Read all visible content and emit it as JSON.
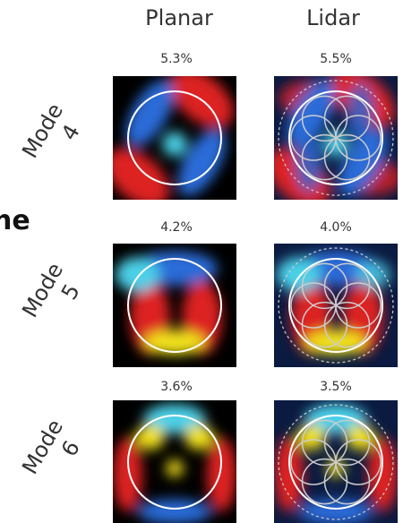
{
  "columns": [
    "Planar",
    "Lidar"
  ],
  "rows": [
    {
      "label": [
        "Mode",
        "4"
      ],
      "values": [
        "5.3%",
        "5.5%"
      ]
    },
    {
      "label": [
        "Mode",
        "5"
      ],
      "values": [
        "4.2%",
        "4.0%"
      ]
    },
    {
      "label": [
        "Mode",
        "6"
      ],
      "values": [
        "3.6%",
        "3.5%"
      ]
    }
  ],
  "cut_text": "ne"
}
